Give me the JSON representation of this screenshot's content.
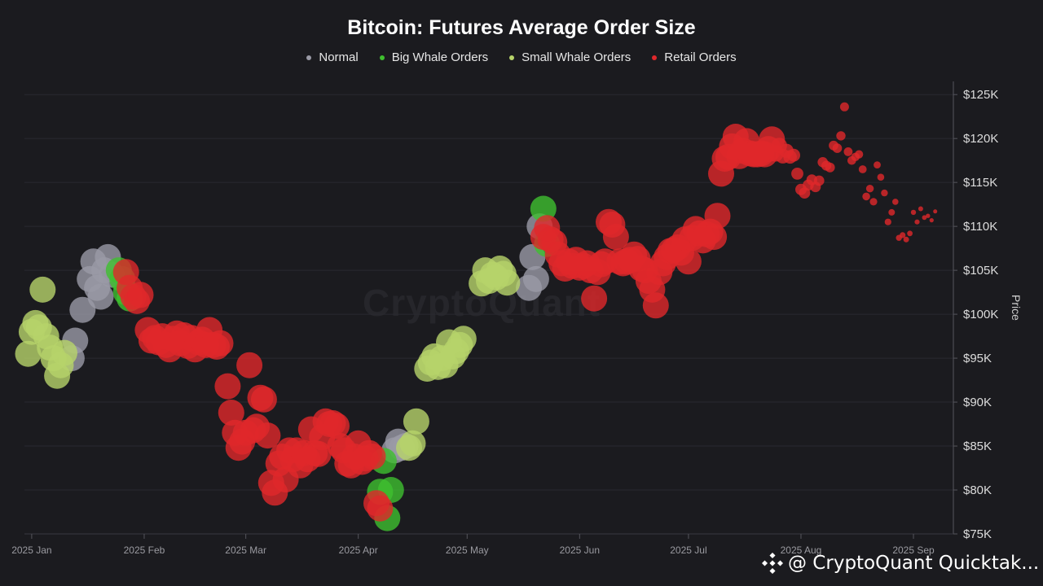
{
  "watermark": "CryptoQuant",
  "footer": {
    "text": "@ CryptoQuant Quicktak...",
    "icon": "binance-logo-icon"
  },
  "colors": {
    "background": "#1b1b1f",
    "grid": "#2a2a30",
    "normal": "#9a9aa6",
    "big_whale": "#3fbf2f",
    "small_whale": "#b7d36a",
    "retail": "#e0282b"
  },
  "chart_data": {
    "type": "scatter",
    "title": "Bitcoin: Futures Average Order Size",
    "ylabel": "Price",
    "ylim": [
      75000,
      126500
    ],
    "xlim": [
      "2024-12-30",
      "2025-09-12"
    ],
    "legend_position": "top-center",
    "grid": true,
    "x_ticks": [
      {
        "date": "2025-01-01",
        "label": "2025 Jan"
      },
      {
        "date": "2025-02-01",
        "label": "2025 Feb"
      },
      {
        "date": "2025-03-01",
        "label": "2025 Mar"
      },
      {
        "date": "2025-04-01",
        "label": "2025 Apr"
      },
      {
        "date": "2025-05-01",
        "label": "2025 May"
      },
      {
        "date": "2025-06-01",
        "label": "2025 Jun"
      },
      {
        "date": "2025-07-01",
        "label": "2025 Jul"
      },
      {
        "date": "2025-08-01",
        "label": "2025 Aug"
      },
      {
        "date": "2025-09-01",
        "label": "2025 Sep"
      }
    ],
    "y_ticks": [
      {
        "value": 75000,
        "label": "$75K"
      },
      {
        "value": 80000,
        "label": "$80K"
      },
      {
        "value": 85000,
        "label": "$85K"
      },
      {
        "value": 90000,
        "label": "$90K"
      },
      {
        "value": 95000,
        "label": "$95K"
      },
      {
        "value": 100000,
        "label": "$100K"
      },
      {
        "value": 105000,
        "label": "$105K"
      },
      {
        "value": 110000,
        "label": "$110K"
      },
      {
        "value": 115000,
        "label": "$115K"
      },
      {
        "value": 120000,
        "label": "$120K"
      },
      {
        "value": 125000,
        "label": "$125K"
      }
    ],
    "series": [
      {
        "name": "Normal",
        "points": [
          [
            "2025-01-13",
            97000
          ],
          [
            "2025-01-12",
            95000
          ],
          [
            "2025-01-15",
            100500
          ],
          [
            "2025-01-17",
            104000
          ],
          [
            "2025-01-18",
            106000
          ],
          [
            "2025-01-19",
            103000
          ],
          [
            "2025-01-20",
            102000
          ],
          [
            "2025-01-21",
            105000
          ],
          [
            "2025-01-22",
            106500
          ],
          [
            "2025-01-23",
            104500
          ],
          [
            "2025-04-11",
            84500
          ],
          [
            "2025-04-12",
            85500
          ],
          [
            "2025-04-13",
            84800
          ],
          [
            "2025-04-14",
            85000
          ],
          [
            "2025-05-18",
            103000
          ],
          [
            "2025-05-19",
            106500
          ],
          [
            "2025-05-20",
            104000
          ],
          [
            "2025-05-21",
            110000
          ]
        ]
      },
      {
        "name": "Big Whale Orders",
        "points": [
          [
            "2025-01-25",
            105000
          ],
          [
            "2025-01-26",
            104000
          ],
          [
            "2025-01-27",
            102500
          ],
          [
            "2025-01-28",
            101800
          ],
          [
            "2025-04-07",
            79800
          ],
          [
            "2025-04-08",
            83300
          ],
          [
            "2025-04-09",
            76800
          ],
          [
            "2025-04-10",
            80000
          ],
          [
            "2025-05-22",
            112000
          ],
          [
            "2025-05-23",
            108000
          ]
        ]
      },
      {
        "name": "Small Whale Orders",
        "points": [
          [
            "2024-12-31",
            95500
          ],
          [
            "2025-01-01",
            98000
          ],
          [
            "2025-01-02",
            99000
          ],
          [
            "2025-01-03",
            98500
          ],
          [
            "2025-01-04",
            102800
          ],
          [
            "2025-01-05",
            97500
          ],
          [
            "2025-01-06",
            96200
          ],
          [
            "2025-01-07",
            95000
          ],
          [
            "2025-01-08",
            93000
          ],
          [
            "2025-01-09",
            94200
          ],
          [
            "2025-01-10",
            95600
          ],
          [
            "2025-04-15",
            84800
          ],
          [
            "2025-04-16",
            85300
          ],
          [
            "2025-04-17",
            87800
          ],
          [
            "2025-04-20",
            93800
          ],
          [
            "2025-04-21",
            94500
          ],
          [
            "2025-04-22",
            95200
          ],
          [
            "2025-04-23",
            94000
          ],
          [
            "2025-04-24",
            95000
          ],
          [
            "2025-04-25",
            94200
          ],
          [
            "2025-04-26",
            96800
          ],
          [
            "2025-04-27",
            95200
          ],
          [
            "2025-04-28",
            95800
          ],
          [
            "2025-04-29",
            96500
          ],
          [
            "2025-04-30",
            97200
          ],
          [
            "2025-05-05",
            103500
          ],
          [
            "2025-05-06",
            105000
          ],
          [
            "2025-05-07",
            103800
          ],
          [
            "2025-05-08",
            104500
          ],
          [
            "2025-05-09",
            104200
          ],
          [
            "2025-05-10",
            105200
          ],
          [
            "2025-05-11",
            104600
          ],
          [
            "2025-05-12",
            103600
          ]
        ]
      },
      {
        "name": "Retail Orders",
        "points": [
          [
            "2025-01-27",
            104800
          ],
          [
            "2025-01-28",
            103000
          ],
          [
            "2025-01-29",
            102000
          ],
          [
            "2025-01-30",
            101500
          ],
          [
            "2025-01-31",
            102200
          ],
          [
            "2025-02-02",
            98200
          ],
          [
            "2025-02-03",
            97000
          ],
          [
            "2025-02-04",
            97300
          ],
          [
            "2025-02-05",
            96800
          ],
          [
            "2025-02-06",
            97500
          ],
          [
            "2025-02-07",
            96500
          ],
          [
            "2025-02-08",
            96000
          ],
          [
            "2025-02-09",
            97200
          ],
          [
            "2025-02-10",
            97800
          ],
          [
            "2025-02-11",
            96700
          ],
          [
            "2025-02-12",
            97600
          ],
          [
            "2025-02-13",
            96400
          ],
          [
            "2025-02-14",
            97300
          ],
          [
            "2025-02-15",
            96000
          ],
          [
            "2025-02-16",
            96800
          ],
          [
            "2025-02-17",
            97100
          ],
          [
            "2025-02-18",
            96500
          ],
          [
            "2025-02-19",
            98200
          ],
          [
            "2025-02-20",
            96500
          ],
          [
            "2025-02-21",
            96300
          ],
          [
            "2025-02-22",
            96700
          ],
          [
            "2025-02-24",
            91800
          ],
          [
            "2025-02-25",
            88800
          ],
          [
            "2025-02-26",
            86500
          ],
          [
            "2025-02-27",
            84800
          ],
          [
            "2025-02-28",
            85500
          ],
          [
            "2025-03-01",
            86500
          ],
          [
            "2025-03-02",
            94200
          ],
          [
            "2025-03-03",
            86800
          ],
          [
            "2025-03-04",
            87200
          ],
          [
            "2025-03-05",
            90500
          ],
          [
            "2025-03-06",
            90300
          ],
          [
            "2025-03-07",
            86200
          ],
          [
            "2025-03-08",
            80800
          ],
          [
            "2025-03-09",
            79700
          ],
          [
            "2025-03-10",
            83000
          ],
          [
            "2025-03-11",
            83800
          ],
          [
            "2025-03-12",
            81200
          ],
          [
            "2025-03-13",
            84500
          ],
          [
            "2025-03-14",
            83500
          ],
          [
            "2025-03-15",
            84500
          ],
          [
            "2025-03-16",
            82800
          ],
          [
            "2025-03-17",
            84200
          ],
          [
            "2025-03-18",
            83500
          ],
          [
            "2025-03-19",
            86900
          ],
          [
            "2025-03-20",
            84200
          ],
          [
            "2025-03-21",
            84100
          ],
          [
            "2025-03-22",
            86000
          ],
          [
            "2025-03-23",
            87800
          ],
          [
            "2025-03-24",
            87500
          ],
          [
            "2025-03-25",
            87600
          ],
          [
            "2025-03-26",
            87300
          ],
          [
            "2025-03-27",
            85000
          ],
          [
            "2025-03-28",
            84500
          ],
          [
            "2025-03-29",
            83000
          ],
          [
            "2025-03-30",
            82800
          ],
          [
            "2025-03-31",
            83800
          ],
          [
            "2025-04-01",
            85300
          ],
          [
            "2025-04-02",
            83200
          ],
          [
            "2025-04-03",
            83600
          ],
          [
            "2025-04-04",
            84200
          ],
          [
            "2025-04-05",
            83800
          ],
          [
            "2025-04-06",
            78500
          ],
          [
            "2025-04-07",
            77900
          ],
          [
            "2025-05-22",
            108800
          ],
          [
            "2025-05-23",
            109800
          ],
          [
            "2025-05-24",
            108500
          ],
          [
            "2025-05-25",
            108200
          ],
          [
            "2025-05-26",
            106800
          ],
          [
            "2025-05-27",
            105800
          ],
          [
            "2025-05-28",
            105200
          ],
          [
            "2025-05-29",
            106000
          ],
          [
            "2025-05-30",
            105500
          ],
          [
            "2025-05-31",
            106200
          ],
          [
            "2025-06-01",
            105300
          ],
          [
            "2025-06-02",
            105500
          ],
          [
            "2025-06-03",
            105800
          ],
          [
            "2025-06-04",
            105000
          ],
          [
            "2025-06-05",
            101800
          ],
          [
            "2025-06-06",
            104800
          ],
          [
            "2025-06-07",
            105700
          ],
          [
            "2025-06-08",
            106000
          ],
          [
            "2025-06-09",
            110500
          ],
          [
            "2025-06-10",
            110200
          ],
          [
            "2025-06-11",
            108800
          ],
          [
            "2025-06-12",
            106000
          ],
          [
            "2025-06-13",
            105800
          ],
          [
            "2025-06-14",
            106000
          ],
          [
            "2025-06-15",
            106200
          ],
          [
            "2025-06-16",
            106800
          ],
          [
            "2025-06-17",
            106300
          ],
          [
            "2025-06-18",
            105200
          ],
          [
            "2025-06-19",
            105000
          ],
          [
            "2025-06-20",
            103800
          ],
          [
            "2025-06-21",
            102800
          ],
          [
            "2025-06-22",
            101000
          ],
          [
            "2025-06-23",
            104800
          ],
          [
            "2025-06-24",
            105800
          ],
          [
            "2025-06-25",
            106500
          ],
          [
            "2025-06-26",
            107200
          ],
          [
            "2025-06-27",
            107300
          ],
          [
            "2025-06-28",
            107600
          ],
          [
            "2025-06-29",
            107000
          ],
          [
            "2025-06-30",
            108500
          ],
          [
            "2025-07-01",
            106000
          ],
          [
            "2025-07-02",
            108700
          ],
          [
            "2025-07-03",
            109700
          ],
          [
            "2025-07-04",
            109200
          ],
          [
            "2025-07-05",
            108400
          ],
          [
            "2025-07-06",
            109100
          ],
          [
            "2025-07-07",
            109400
          ],
          [
            "2025-07-08",
            108800
          ],
          [
            "2025-07-09",
            111200
          ],
          [
            "2025-07-10",
            116000
          ],
          [
            "2025-07-11",
            117700
          ],
          [
            "2025-07-12",
            117900
          ],
          [
            "2025-07-13",
            119100
          ],
          [
            "2025-07-14",
            120200
          ],
          [
            "2025-07-15",
            118000
          ],
          [
            "2025-07-16",
            118600
          ],
          [
            "2025-07-17",
            119700
          ],
          [
            "2025-07-18",
            118300
          ],
          [
            "2025-07-19",
            118200
          ],
          [
            "2025-07-20",
            118200
          ],
          [
            "2025-07-21",
            118300
          ],
          [
            "2025-07-22",
            118200
          ],
          [
            "2025-07-23",
            118800
          ],
          [
            "2025-07-24",
            119900
          ],
          [
            "2025-07-25",
            118300
          ],
          [
            "2025-07-26",
            119200
          ],
          [
            "2025-07-27",
            118000
          ],
          [
            "2025-07-28",
            118600
          ],
          [
            "2025-07-29",
            117900
          ],
          [
            "2025-07-30",
            118100
          ],
          [
            "2025-07-31",
            116000
          ],
          [
            "2025-08-01",
            114200
          ],
          [
            "2025-08-02",
            113800
          ],
          [
            "2025-08-03",
            114700
          ],
          [
            "2025-08-04",
            115300
          ],
          [
            "2025-08-05",
            114500
          ],
          [
            "2025-08-06",
            115200
          ],
          [
            "2025-08-07",
            117300
          ],
          [
            "2025-08-08",
            116900
          ],
          [
            "2025-08-09",
            116700
          ],
          [
            "2025-08-10",
            119200
          ],
          [
            "2025-08-11",
            118900
          ],
          [
            "2025-08-12",
            120300
          ],
          [
            "2025-08-13",
            123600
          ],
          [
            "2025-08-14",
            118500
          ],
          [
            "2025-08-15",
            117500
          ],
          [
            "2025-08-16",
            117900
          ],
          [
            "2025-08-17",
            118200
          ],
          [
            "2025-08-18",
            116500
          ],
          [
            "2025-08-19",
            113400
          ],
          [
            "2025-08-20",
            114300
          ],
          [
            "2025-08-21",
            112800
          ],
          [
            "2025-08-22",
            117000
          ],
          [
            "2025-08-23",
            115600
          ],
          [
            "2025-08-24",
            113800
          ],
          [
            "2025-08-25",
            110500
          ],
          [
            "2025-08-26",
            111600
          ],
          [
            "2025-08-27",
            112800
          ],
          [
            "2025-08-28",
            108700
          ],
          [
            "2025-08-29",
            109000
          ],
          [
            "2025-08-30",
            108500
          ],
          [
            "2025-08-31",
            109200
          ],
          [
            "2025-09-01",
            111600
          ],
          [
            "2025-09-02",
            110500
          ],
          [
            "2025-09-03",
            112000
          ],
          [
            "2025-09-04",
            111000
          ],
          [
            "2025-09-05",
            111200
          ],
          [
            "2025-09-06",
            110700
          ],
          [
            "2025-09-07",
            111700
          ]
        ]
      }
    ]
  }
}
